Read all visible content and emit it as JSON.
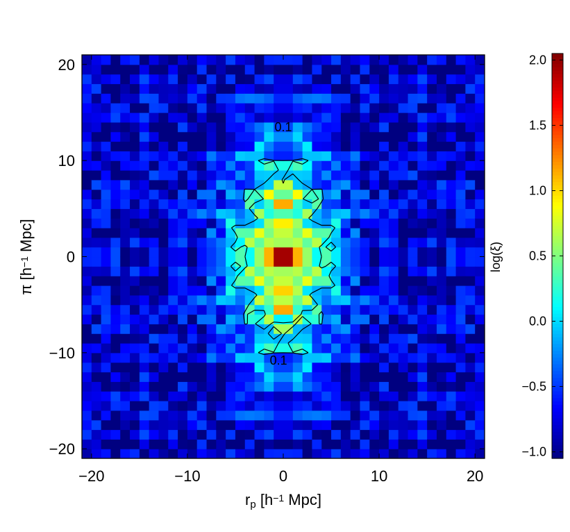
{
  "chart_data": {
    "type": "heatmap",
    "title": "",
    "xlabel": "r_p [h^-1 Mpc]",
    "ylabel": "π [h^-1 Mpc]",
    "colorbar_label": "log(ξ)",
    "xlim": [
      -21,
      21
    ],
    "ylim": [
      -21,
      21
    ],
    "xticks": [
      -20,
      -10,
      0,
      10,
      20
    ],
    "yticks": [
      -20,
      -10,
      0,
      10,
      20
    ],
    "colorbar_range": [
      -1.05,
      2.05
    ],
    "colorbar_ticks": [
      -1.0,
      -0.5,
      0.0,
      0.5,
      1.0,
      1.5,
      2.0
    ],
    "colormap": "jet",
    "grid_resolution": 1.0,
    "contour_levels": [
      0.1
    ],
    "contour_labels": [
      {
        "x": 0,
        "y": 13.5,
        "text": "0.1"
      },
      {
        "x": -0.5,
        "y": -10.8,
        "text": "0.1"
      }
    ],
    "features": {
      "peak": {
        "x": 0,
        "y": 0,
        "value": 1.9
      },
      "secondary_peaks": [
        {
          "x": 0,
          "y": 6,
          "value": 1.35
        },
        {
          "x": 0,
          "y": -5,
          "value": 1.35
        }
      ],
      "central_plateau_value": 0.8,
      "background_value": -0.85
    }
  }
}
